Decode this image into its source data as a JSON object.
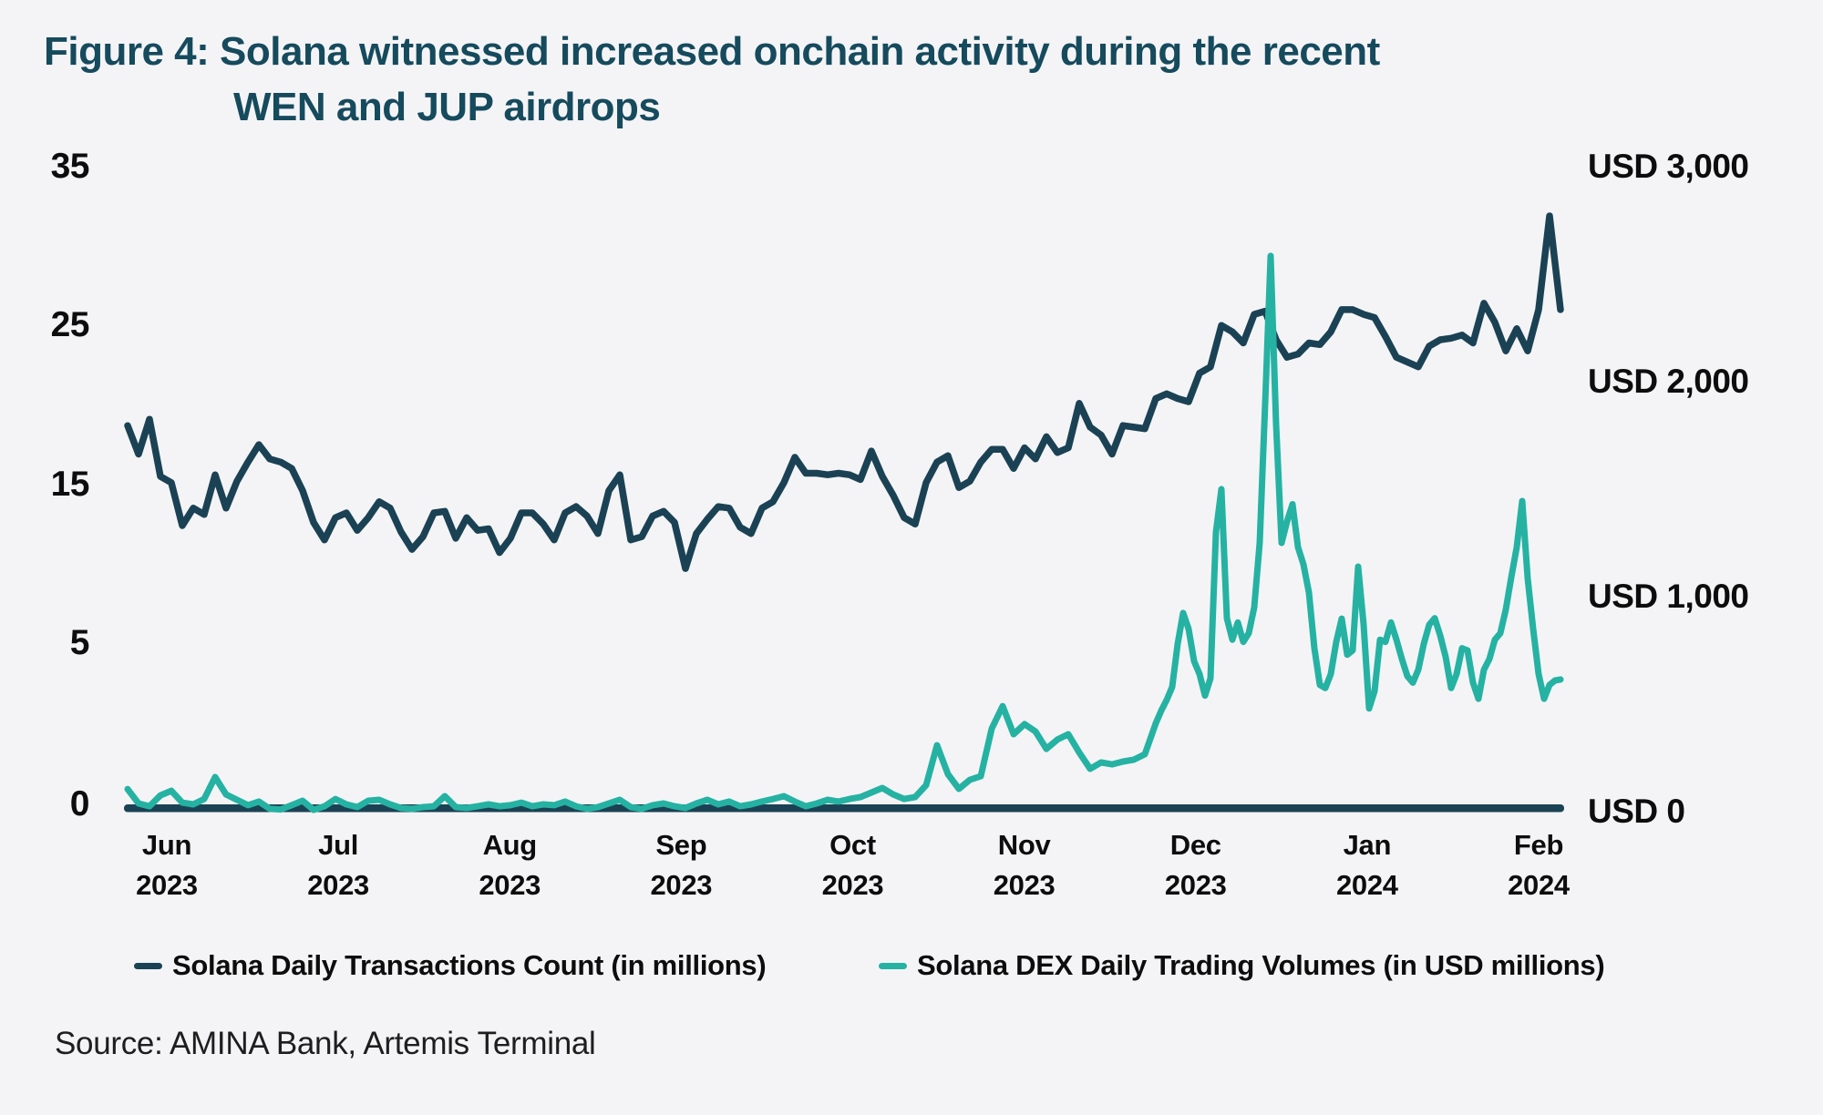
{
  "figure": {
    "title_line1": "Figure 4: Solana witnessed increased onchain activity during the recent",
    "title_line2": "WEN and JUP airdrops"
  },
  "source_text": "Source: AMINA Bank, Artemis Terminal",
  "colors": {
    "background": "#f4f4f6",
    "title": "#164a5d",
    "transactions_line": "#1b4254",
    "dex_volumes_line": "#25b2a3",
    "axis_text": "#0d0d0d",
    "baseline": "#1b4254"
  },
  "legend": [
    {
      "label": "Solana Daily Transactions Count (in millions)",
      "color": "#1b4254"
    },
    {
      "label": "Solana DEX Daily Trading Volumes (in USD millions)",
      "color": "#25b2a3"
    }
  ],
  "chart_data": {
    "type": "line",
    "title": "Solana onchain activity",
    "x_unit": "days since 2023-06-01",
    "grid": "off",
    "legend_position": "bottom",
    "x_axis_months": [
      {
        "month": "Jun",
        "year": "2023"
      },
      {
        "month": "Jul",
        "year": "2023"
      },
      {
        "month": "Aug",
        "year": "2023"
      },
      {
        "month": "Sep",
        "year": "2023"
      },
      {
        "month": "Oct",
        "year": "2023"
      },
      {
        "month": "Nov",
        "year": "2023"
      },
      {
        "month": "Dec",
        "year": "2023"
      },
      {
        "month": "Jan",
        "year": "2024"
      },
      {
        "month": "Feb",
        "year": "2024"
      }
    ],
    "left_axis": {
      "title": "Daily transactions (millions)",
      "tick_values": [
        0,
        5,
        15,
        25,
        35
      ],
      "tick_labels": [
        "0",
        "5",
        "15",
        "25",
        "35"
      ]
    },
    "right_axis": {
      "title": "DEX daily trading volume (USD millions)",
      "tick_values": [
        0,
        1000,
        2000,
        3000
      ],
      "tick_labels": [
        "USD 0",
        "USD 1,000",
        "USD 2,000",
        "USD 3,000"
      ]
    },
    "series": [
      {
        "name": "Solana Daily Transactions Count (in millions)",
        "axis": "left",
        "start_day": 0,
        "day_step": 2,
        "values": [
          18.7,
          16.9,
          19.1,
          15.5,
          15.1,
          12.4,
          13.5,
          13.1,
          15.6,
          13.5,
          15.2,
          16.4,
          17.5,
          16.6,
          16.4,
          16.0,
          14.6,
          12.6,
          11.5,
          12.9,
          13.2,
          12.1,
          12.9,
          13.9,
          13.5,
          12.0,
          10.9,
          11.7,
          13.2,
          13.3,
          11.6,
          12.9,
          12.1,
          12.2,
          10.7,
          11.6,
          13.2,
          13.2,
          12.5,
          11.5,
          13.2,
          13.6,
          13.0,
          11.9,
          14.6,
          15.6,
          11.5,
          11.7,
          13.0,
          13.3,
          12.6,
          9.7,
          11.9,
          12.8,
          13.6,
          13.5,
          12.3,
          11.9,
          13.5,
          13.9,
          15.1,
          16.7,
          15.7,
          15.7,
          15.6,
          15.7,
          15.6,
          15.3,
          17.1,
          15.5,
          14.3,
          12.9,
          12.5,
          15.1,
          16.4,
          16.8,
          14.8,
          15.2,
          16.4,
          17.2,
          17.2,
          16.0,
          17.3,
          16.6,
          18.0,
          17.0,
          17.3,
          20.1,
          18.6,
          18.1,
          16.9,
          18.7,
          18.6,
          18.5,
          20.4,
          20.7,
          20.4,
          20.2,
          22.0,
          22.4,
          25.0,
          24.6,
          23.9,
          25.7,
          25.9,
          24.1,
          23.0,
          23.2,
          23.9,
          23.8,
          24.6,
          26.0,
          26.0,
          25.7,
          25.5,
          24.3,
          23.0,
          22.7,
          22.4,
          23.7,
          24.1,
          24.2,
          24.4,
          23.9,
          26.4,
          25.2,
          23.4,
          24.8,
          23.4,
          26.0,
          31.9,
          26.0
        ]
      },
      {
        "name": "Solana DEX Daily Trading Volumes (in USD millions)",
        "axis": "right",
        "segments": [
          {
            "start_day": 0,
            "day_step": 2,
            "values": [
              105,
              38,
              25,
              76,
              97,
              42,
              34,
              59,
              161,
              80,
              55,
              30,
              47,
              13,
              10,
              30,
              51,
              8,
              25,
              59,
              34,
              21,
              51,
              55,
              34,
              17,
              13,
              21,
              25,
              72,
              21,
              17,
              25,
              34,
              25,
              30,
              42,
              25,
              34,
              30,
              47,
              25,
              13,
              21,
              38,
              55,
              21,
              13,
              30,
              38,
              25,
              17,
              38,
              55,
              34,
              47,
              25,
              34,
              47,
              59,
              72,
              47,
              25,
              38,
              55,
              47,
              59,
              68,
              89,
              110,
              80,
              59,
              68,
              123,
              309,
              174,
              106,
              148,
              165,
              386,
              491,
              360,
              407,
              373,
              292,
              335,
              360,
              275,
              199,
              229,
              220,
              233,
              242,
              267,
              411
            ]
          },
          {
            "start_day": 189,
            "day_step": 1,
            "values": [
              470,
              520,
              580,
              780,
              924,
              850,
              700,
              640,
              540,
              620,
              1300,
              1500,
              900,
              800,
              880,
              790,
              830,
              950,
              1250,
              1900,
              2585,
              1800,
              1250,
              1350,
              1430,
              1230,
              1150,
              1020,
              760,
              590,
              575,
              640,
              790,
              898,
              730,
              750,
              1140,
              870,
              480,
              560,
              800,
              790,
              880,
              800,
              710,
              630,
              600,
              660,
              780,
              870,
              900,
              820,
              720,
              575,
              640,
              760,
              750,
              600,
              525,
              660,
              710,
              800,
              830,
              940,
              1090,
              1230,
              1445,
              1085,
              850,
              640,
              525,
              590,
              610,
              615
            ]
          }
        ]
      }
    ]
  }
}
